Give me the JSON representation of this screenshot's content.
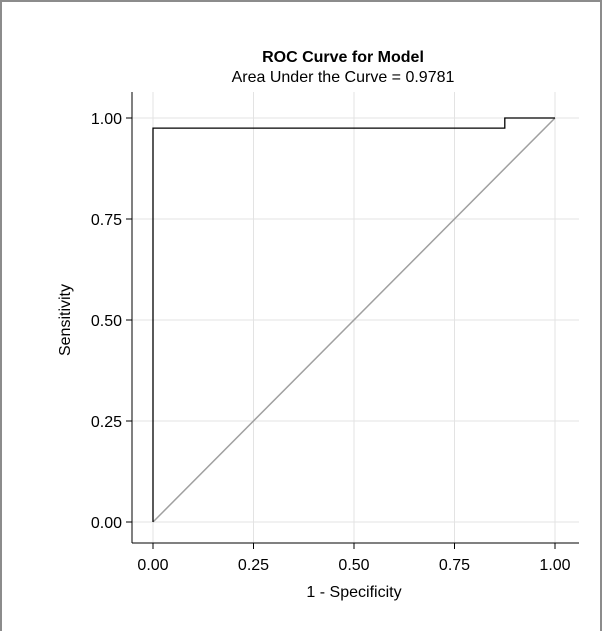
{
  "chart_data": {
    "type": "line",
    "title": "ROC Curve for Model",
    "subtitle": "Area Under the Curve = 0.9781",
    "xlabel": "1 - Specificity",
    "ylabel": "Sensitivity",
    "xlim": [
      0,
      1
    ],
    "ylim": [
      0,
      1
    ],
    "x_ticks": [
      0,
      0.25,
      0.5,
      0.75,
      1
    ],
    "x_tick_labels": [
      "0.00",
      "0.25",
      "0.50",
      "0.75",
      "1.00"
    ],
    "y_ticks": [
      0,
      0.25,
      0.5,
      0.75,
      1
    ],
    "y_tick_labels": [
      "0.00",
      "0.25",
      "0.50",
      "0.75",
      "1.00"
    ],
    "grid": true,
    "series": [
      {
        "x": [
          0,
          0,
          0.875,
          0.875,
          1
        ],
        "y": [
          0,
          0.975,
          0.975,
          1,
          1
        ],
        "color": "#000000"
      },
      {
        "x": [
          0,
          1
        ],
        "y": [
          0,
          1
        ],
        "color": "#a0a0a0"
      }
    ]
  }
}
